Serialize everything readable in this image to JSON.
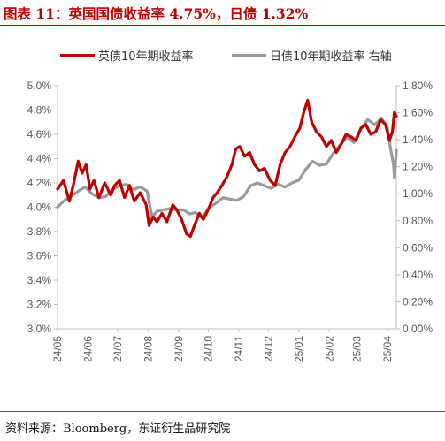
{
  "figure": {
    "title": "图表 11：英国国债收益率 4.75%，日债 1.32%",
    "source": "资料来源：Bloomberg，东证衍生品研究院"
  },
  "chart_data": {
    "type": "line",
    "title": "",
    "xlabel": "",
    "ylabel": "",
    "legend_position": "top",
    "grid": false,
    "x_range": [
      "2024-05-01",
      "2025-04-10"
    ],
    "x_tick_labels": [
      "24/05",
      "24/06",
      "24/07",
      "24/08",
      "24/09",
      "24/10",
      "24/11",
      "24/12",
      "25/01",
      "25/02",
      "25/03",
      "25/04"
    ],
    "left_axis": {
      "ylim": [
        3.0,
        5.0
      ],
      "tick_values": [
        3.0,
        3.2,
        3.4,
        3.6,
        3.8,
        4.0,
        4.2,
        4.4,
        4.6,
        4.8,
        5.0
      ],
      "tick_labels": [
        "3.0%",
        "3.2%",
        "3.4%",
        "3.6%",
        "3.8%",
        "4.0%",
        "4.2%",
        "4.4%",
        "4.6%",
        "4.8%",
        "5.0%"
      ]
    },
    "right_axis": {
      "ylim": [
        0.0,
        1.8
      ],
      "tick_values": [
        0.0,
        0.2,
        0.4,
        0.6,
        0.8,
        1.0,
        1.2,
        1.4,
        1.6,
        1.8
      ],
      "tick_labels": [
        "0.00%",
        "0.20%",
        "0.40%",
        "0.60%",
        "0.80%",
        "1.00%",
        "1.20%",
        "1.40%",
        "1.60%",
        "1.80%"
      ]
    },
    "series": [
      {
        "name": "英债10年期收益率",
        "axis": "left",
        "color": "#c00000",
        "x": [
          "2024-05-01",
          "2024-05-07",
          "2024-05-13",
          "2024-05-17",
          "2024-05-22",
          "2024-05-26",
          "2024-05-30",
          "2024-06-03",
          "2024-06-07",
          "2024-06-12",
          "2024-06-18",
          "2024-06-24",
          "2024-06-28",
          "2024-07-03",
          "2024-07-08",
          "2024-07-13",
          "2024-07-18",
          "2024-07-24",
          "2024-07-30",
          "2024-08-02",
          "2024-08-06",
          "2024-08-10",
          "2024-08-15",
          "2024-08-20",
          "2024-08-26",
          "2024-08-30",
          "2024-09-04",
          "2024-09-09",
          "2024-09-13",
          "2024-09-17",
          "2024-09-22",
          "2024-09-26",
          "2024-10-01",
          "2024-10-06",
          "2024-10-10",
          "2024-10-15",
          "2024-10-20",
          "2024-10-25",
          "2024-10-29",
          "2024-11-02",
          "2024-11-07",
          "2024-11-12",
          "2024-11-17",
          "2024-11-22",
          "2024-11-27",
          "2024-12-03",
          "2024-12-08",
          "2024-12-13",
          "2024-12-18",
          "2024-12-23",
          "2024-12-28",
          "2025-01-02",
          "2025-01-06",
          "2025-01-10",
          "2025-01-14",
          "2025-01-19",
          "2025-01-24",
          "2025-01-29",
          "2025-02-03",
          "2025-02-08",
          "2025-02-13",
          "2025-02-18",
          "2025-02-23",
          "2025-02-28",
          "2025-03-05",
          "2025-03-10",
          "2025-03-15",
          "2025-03-20",
          "2025-03-25",
          "2025-03-30",
          "2025-04-03",
          "2025-04-06",
          "2025-04-08",
          "2025-04-10"
        ],
        "values": [
          4.15,
          4.22,
          4.05,
          4.18,
          4.38,
          4.28,
          4.35,
          4.15,
          4.22,
          4.08,
          4.2,
          4.1,
          4.18,
          4.22,
          4.08,
          4.18,
          4.05,
          4.12,
          4.02,
          3.85,
          3.92,
          3.88,
          3.95,
          3.88,
          4.02,
          3.98,
          3.9,
          3.78,
          3.76,
          3.85,
          3.95,
          3.9,
          3.98,
          4.08,
          4.12,
          4.18,
          4.25,
          4.35,
          4.48,
          4.5,
          4.42,
          4.45,
          4.35,
          4.3,
          4.32,
          4.22,
          4.18,
          4.35,
          4.45,
          4.5,
          4.58,
          4.65,
          4.78,
          4.88,
          4.7,
          4.62,
          4.58,
          4.5,
          4.55,
          4.45,
          4.52,
          4.6,
          4.58,
          4.55,
          4.65,
          4.68,
          4.6,
          4.62,
          4.72,
          4.68,
          4.55,
          4.62,
          4.78,
          4.75
        ]
      },
      {
        "name": "日债10年期收益率 右轴",
        "axis": "right",
        "color": "#999999",
        "x": [
          "2024-05-01",
          "2024-05-08",
          "2024-05-15",
          "2024-05-22",
          "2024-05-29",
          "2024-06-05",
          "2024-06-12",
          "2024-06-19",
          "2024-06-26",
          "2024-07-03",
          "2024-07-10",
          "2024-07-17",
          "2024-07-24",
          "2024-07-31",
          "2024-08-05",
          "2024-08-10",
          "2024-08-16",
          "2024-08-23",
          "2024-08-30",
          "2024-09-06",
          "2024-09-12",
          "2024-09-18",
          "2024-09-25",
          "2024-10-02",
          "2024-10-09",
          "2024-10-16",
          "2024-10-23",
          "2024-10-30",
          "2024-11-06",
          "2024-11-13",
          "2024-11-20",
          "2024-11-27",
          "2024-12-04",
          "2024-12-11",
          "2024-12-18",
          "2024-12-25",
          "2025-01-01",
          "2025-01-08",
          "2025-01-15",
          "2025-01-22",
          "2025-01-29",
          "2025-02-05",
          "2025-02-12",
          "2025-02-19",
          "2025-02-26",
          "2025-03-05",
          "2025-03-12",
          "2025-03-19",
          "2025-03-26",
          "2025-04-01",
          "2025-04-04",
          "2025-04-07",
          "2025-04-08",
          "2025-04-10"
        ],
        "values": [
          0.9,
          0.95,
          0.98,
          1.02,
          1.05,
          1.0,
          0.97,
          0.98,
          1.03,
          1.06,
          1.07,
          1.03,
          1.05,
          1.02,
          0.83,
          0.87,
          0.88,
          0.89,
          0.88,
          0.88,
          0.85,
          0.86,
          0.82,
          0.9,
          0.93,
          0.97,
          0.96,
          0.95,
          0.98,
          1.06,
          1.08,
          1.06,
          1.04,
          1.07,
          1.05,
          1.08,
          1.1,
          1.18,
          1.24,
          1.21,
          1.22,
          1.3,
          1.36,
          1.42,
          1.38,
          1.48,
          1.55,
          1.51,
          1.56,
          1.49,
          1.34,
          1.22,
          1.12,
          1.32
        ]
      }
    ]
  }
}
